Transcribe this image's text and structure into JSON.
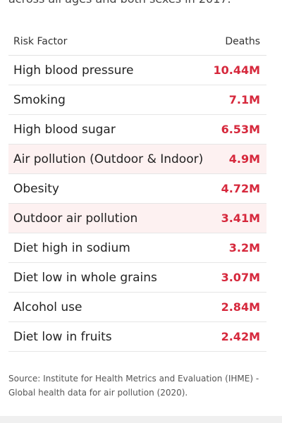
{
  "subtitle_fragment": "across all ages and both sexes in 2017.",
  "chart_data": {
    "type": "table",
    "columns": [
      "Risk Factor",
      "Deaths"
    ],
    "rows": [
      {
        "factor": "High blood pressure",
        "deaths": "10.44M",
        "value_millions": 10.44,
        "highlight": false
      },
      {
        "factor": "Smoking",
        "deaths": "7.1M",
        "value_millions": 7.1,
        "highlight": false
      },
      {
        "factor": "High blood sugar",
        "deaths": "6.53M",
        "value_millions": 6.53,
        "highlight": false
      },
      {
        "factor": "Air pollution (Outdoor & Indoor)",
        "deaths": "4.9M",
        "value_millions": 4.9,
        "highlight": true
      },
      {
        "factor": "Obesity",
        "deaths": "4.72M",
        "value_millions": 4.72,
        "highlight": false
      },
      {
        "factor": "Outdoor air pollution",
        "deaths": "3.41M",
        "value_millions": 3.41,
        "highlight": true
      },
      {
        "factor": "Diet high in sodium",
        "deaths": "3.2M",
        "value_millions": 3.2,
        "highlight": false
      },
      {
        "factor": "Diet low in whole grains",
        "deaths": "3.07M",
        "value_millions": 3.07,
        "highlight": false
      },
      {
        "factor": "Alcohol use",
        "deaths": "2.84M",
        "value_millions": 2.84,
        "highlight": false
      },
      {
        "factor": "Diet low in fruits",
        "deaths": "2.42M",
        "value_millions": 2.42,
        "highlight": false
      }
    ],
    "highlight_color": "#fdf1f1",
    "value_color": "#d6283c"
  },
  "source": "Source: Institute for Health Metrics and Evaluation (IHME) - Global health data for air pollution (2020)."
}
